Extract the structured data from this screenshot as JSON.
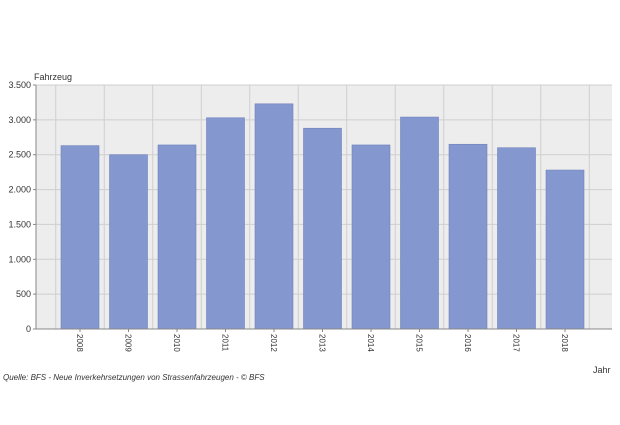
{
  "chart_data": {
    "type": "bar",
    "title": "",
    "ylabel": "Fahrzeug",
    "xlabel": "Jahr",
    "categories": [
      "2008",
      "2009",
      "2010",
      "2011",
      "2012",
      "2013",
      "2014",
      "2015",
      "2016",
      "2017",
      "2018"
    ],
    "values": [
      2630,
      2500,
      2640,
      3030,
      3230,
      2880,
      2640,
      3040,
      2650,
      2600,
      2280
    ],
    "ylim": [
      0,
      3500
    ],
    "yticks": [
      0,
      500,
      1000,
      1500,
      2000,
      2500,
      3000,
      3500
    ],
    "ytick_labels": [
      "0",
      "500",
      "1.000",
      "1.500",
      "2.000",
      "2.500",
      "3.000",
      "3.500"
    ],
    "grid": true,
    "legend": "none",
    "bar_color": "#8497cf",
    "plot_background": "#ededed"
  },
  "source": "Quelle: BFS - Neue Inverkehrsetzungen von Strassenfahrzeugen - © BFS"
}
